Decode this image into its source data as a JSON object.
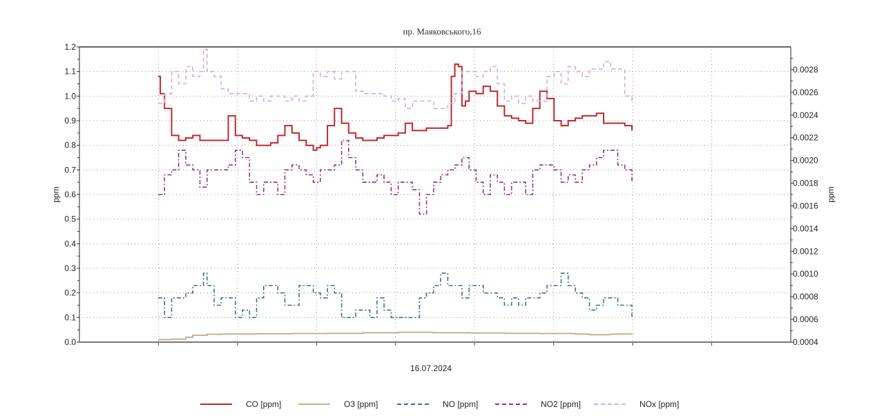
{
  "chart_data": {
    "type": "line",
    "title": "пр. Маяковського,16",
    "xlabel": "16.07.2024",
    "ylabel_left": "ppm",
    "ylabel_right": "ppm",
    "ylim_left": [
      0.0,
      1.2
    ],
    "ylim_right": [
      0.0004,
      0.003
    ],
    "yticks_left": [
      "0.0",
      "0.1",
      "0.2",
      "0.3",
      "0.4",
      "0.5",
      "0.6",
      "0.7",
      "0.8",
      "0.9",
      "1.0",
      "1.1",
      "1.2"
    ],
    "yticks_right": [
      "0.0004",
      "0.0006",
      "0.0008",
      "0.0010",
      "0.0012",
      "0.0014",
      "0.0016",
      "0.0018",
      "0.0020",
      "0.0022",
      "0.0024",
      "0.0026",
      "0.0028"
    ],
    "grid": true,
    "legend_position": "bottom",
    "x_note": "x values are fractions of the full time axis (0 = left edge, 1 = right edge); data covers 0.11–0.78",
    "series": [
      {
        "name": "CO [ppm]",
        "color": "#c0282d",
        "style": "solid",
        "x": [
          0.111,
          0.114,
          0.12,
          0.13,
          0.14,
          0.15,
          0.16,
          0.17,
          0.18,
          0.19,
          0.2,
          0.21,
          0.215,
          0.22,
          0.23,
          0.24,
          0.25,
          0.26,
          0.27,
          0.28,
          0.29,
          0.3,
          0.31,
          0.32,
          0.33,
          0.335,
          0.34,
          0.35,
          0.36,
          0.37,
          0.38,
          0.39,
          0.4,
          0.41,
          0.42,
          0.43,
          0.44,
          0.45,
          0.46,
          0.47,
          0.48,
          0.49,
          0.5,
          0.51,
          0.52,
          0.525,
          0.53,
          0.535,
          0.54,
          0.545,
          0.55,
          0.56,
          0.57,
          0.58,
          0.59,
          0.6,
          0.61,
          0.62,
          0.63,
          0.64,
          0.65,
          0.66,
          0.67,
          0.68,
          0.69,
          0.7,
          0.71,
          0.72,
          0.73,
          0.74,
          0.75,
          0.76,
          0.77,
          0.78
        ],
        "values": [
          1.08,
          1.01,
          0.95,
          0.84,
          0.82,
          0.83,
          0.84,
          0.82,
          0.82,
          0.82,
          0.82,
          0.92,
          0.92,
          0.84,
          0.83,
          0.82,
          0.8,
          0.8,
          0.81,
          0.84,
          0.88,
          0.85,
          0.82,
          0.8,
          0.78,
          0.79,
          0.8,
          0.88,
          0.95,
          0.89,
          0.85,
          0.83,
          0.82,
          0.82,
          0.83,
          0.84,
          0.84,
          0.85,
          0.89,
          0.86,
          0.86,
          0.87,
          0.87,
          0.87,
          0.88,
          1.08,
          1.13,
          1.12,
          0.96,
          0.98,
          1.02,
          1.01,
          1.04,
          1.02,
          0.96,
          0.92,
          0.91,
          0.9,
          0.89,
          0.95,
          1.02,
          0.99,
          0.9,
          0.88,
          0.9,
          0.91,
          0.92,
          0.92,
          0.93,
          0.89,
          0.89,
          0.89,
          0.88,
          0.86
        ]
      },
      {
        "name": "O3 [ppm]",
        "color": "#c8b08a",
        "style": "solid",
        "x": [
          0.111,
          0.13,
          0.15,
          0.16,
          0.18,
          0.2,
          0.25,
          0.3,
          0.35,
          0.4,
          0.45,
          0.5,
          0.55,
          0.6,
          0.65,
          0.7,
          0.72,
          0.75,
          0.78
        ],
        "values": [
          0.01,
          0.012,
          0.02,
          0.028,
          0.032,
          0.033,
          0.034,
          0.035,
          0.036,
          0.038,
          0.04,
          0.038,
          0.037,
          0.036,
          0.035,
          0.033,
          0.03,
          0.033,
          0.034
        ]
      },
      {
        "name": "NO [ppm]",
        "color": "#3d6f8c",
        "style": "dash-dot",
        "x": [
          0.111,
          0.12,
          0.13,
          0.14,
          0.15,
          0.16,
          0.17,
          0.175,
          0.18,
          0.19,
          0.2,
          0.21,
          0.22,
          0.23,
          0.24,
          0.25,
          0.26,
          0.27,
          0.28,
          0.29,
          0.3,
          0.31,
          0.32,
          0.33,
          0.34,
          0.35,
          0.36,
          0.37,
          0.38,
          0.39,
          0.4,
          0.41,
          0.42,
          0.43,
          0.44,
          0.45,
          0.46,
          0.47,
          0.48,
          0.49,
          0.5,
          0.51,
          0.52,
          0.53,
          0.54,
          0.55,
          0.56,
          0.57,
          0.58,
          0.59,
          0.6,
          0.61,
          0.62,
          0.63,
          0.64,
          0.65,
          0.66,
          0.67,
          0.68,
          0.69,
          0.7,
          0.71,
          0.72,
          0.73,
          0.74,
          0.75,
          0.76,
          0.77,
          0.78
        ],
        "values": [
          0.18,
          0.1,
          0.18,
          0.18,
          0.2,
          0.23,
          0.23,
          0.28,
          0.23,
          0.15,
          0.18,
          0.18,
          0.1,
          0.13,
          0.1,
          0.18,
          0.23,
          0.23,
          0.2,
          0.15,
          0.15,
          0.23,
          0.23,
          0.2,
          0.18,
          0.23,
          0.2,
          0.1,
          0.1,
          0.13,
          0.13,
          0.1,
          0.18,
          0.13,
          0.1,
          0.1,
          0.1,
          0.1,
          0.18,
          0.2,
          0.23,
          0.28,
          0.23,
          0.23,
          0.18,
          0.23,
          0.23,
          0.2,
          0.2,
          0.18,
          0.15,
          0.18,
          0.15,
          0.18,
          0.18,
          0.2,
          0.23,
          0.23,
          0.28,
          0.23,
          0.2,
          0.18,
          0.13,
          0.15,
          0.18,
          0.18,
          0.15,
          0.15,
          0.1
        ]
      },
      {
        "name": "NO2 [ppm]",
        "color": "#9b2a8a",
        "style": "dash-dot",
        "x": [
          0.111,
          0.12,
          0.13,
          0.14,
          0.15,
          0.16,
          0.17,
          0.18,
          0.19,
          0.2,
          0.21,
          0.22,
          0.23,
          0.24,
          0.25,
          0.26,
          0.27,
          0.28,
          0.29,
          0.3,
          0.31,
          0.32,
          0.33,
          0.34,
          0.35,
          0.36,
          0.37,
          0.38,
          0.39,
          0.4,
          0.41,
          0.42,
          0.43,
          0.44,
          0.45,
          0.46,
          0.47,
          0.48,
          0.49,
          0.5,
          0.51,
          0.52,
          0.53,
          0.54,
          0.55,
          0.56,
          0.57,
          0.58,
          0.59,
          0.6,
          0.61,
          0.62,
          0.63,
          0.64,
          0.65,
          0.66,
          0.67,
          0.68,
          0.69,
          0.7,
          0.71,
          0.72,
          0.73,
          0.74,
          0.75,
          0.76,
          0.77,
          0.78
        ],
        "values": [
          0.6,
          0.68,
          0.7,
          0.78,
          0.72,
          0.7,
          0.63,
          0.7,
          0.7,
          0.7,
          0.72,
          0.78,
          0.75,
          0.65,
          0.6,
          0.65,
          0.65,
          0.6,
          0.7,
          0.72,
          0.7,
          0.68,
          0.65,
          0.7,
          0.7,
          0.72,
          0.82,
          0.75,
          0.7,
          0.65,
          0.65,
          0.68,
          0.65,
          0.6,
          0.65,
          0.65,
          0.62,
          0.52,
          0.6,
          0.65,
          0.68,
          0.7,
          0.72,
          0.75,
          0.7,
          0.65,
          0.6,
          0.68,
          0.65,
          0.6,
          0.65,
          0.65,
          0.6,
          0.7,
          0.72,
          0.72,
          0.7,
          0.65,
          0.68,
          0.65,
          0.7,
          0.72,
          0.75,
          0.78,
          0.78,
          0.72,
          0.7,
          0.65
        ]
      },
      {
        "name": "NOx [ppm]",
        "color": "#d9a8d6",
        "style": "dash",
        "x": [
          0.111,
          0.12,
          0.13,
          0.14,
          0.15,
          0.16,
          0.17,
          0.175,
          0.18,
          0.19,
          0.2,
          0.21,
          0.22,
          0.23,
          0.24,
          0.25,
          0.26,
          0.27,
          0.28,
          0.29,
          0.3,
          0.31,
          0.32,
          0.33,
          0.34,
          0.35,
          0.36,
          0.37,
          0.38,
          0.39,
          0.4,
          0.41,
          0.42,
          0.43,
          0.44,
          0.45,
          0.46,
          0.47,
          0.48,
          0.49,
          0.5,
          0.51,
          0.52,
          0.53,
          0.54,
          0.55,
          0.56,
          0.57,
          0.58,
          0.59,
          0.6,
          0.61,
          0.62,
          0.63,
          0.64,
          0.65,
          0.66,
          0.67,
          0.68,
          0.69,
          0.7,
          0.71,
          0.72,
          0.73,
          0.74,
          0.75,
          0.76,
          0.77,
          0.78
        ],
        "values": [
          0.97,
          1.01,
          1.1,
          1.05,
          1.12,
          1.08,
          1.1,
          1.19,
          1.1,
          1.08,
          1.03,
          1.01,
          1.01,
          1.01,
          0.98,
          1.0,
          0.98,
          1.0,
          1.0,
          0.98,
          1.0,
          0.98,
          1.0,
          1.1,
          1.08,
          1.1,
          1.07,
          1.1,
          1.1,
          1.02,
          1.01,
          1.01,
          1.01,
          1.0,
          0.98,
          0.99,
          0.95,
          0.98,
          0.98,
          0.98,
          0.95,
          0.95,
          0.97,
          1.01,
          1.1,
          1.1,
          1.08,
          1.1,
          1.12,
          1.05,
          0.98,
          1.0,
          0.97,
          1.0,
          0.98,
          0.98,
          1.08,
          1.1,
          1.05,
          1.12,
          1.1,
          1.08,
          1.11,
          1.11,
          1.14,
          1.11,
          1.11,
          1.0,
          0.98
        ]
      }
    ]
  },
  "legend": {
    "items": [
      {
        "label": "CO [ppm]"
      },
      {
        "label": "O3 [ppm]"
      },
      {
        "label": "NO [ppm]"
      },
      {
        "label": "NO2 [ppm]"
      },
      {
        "label": "NOx [ppm]"
      }
    ]
  }
}
